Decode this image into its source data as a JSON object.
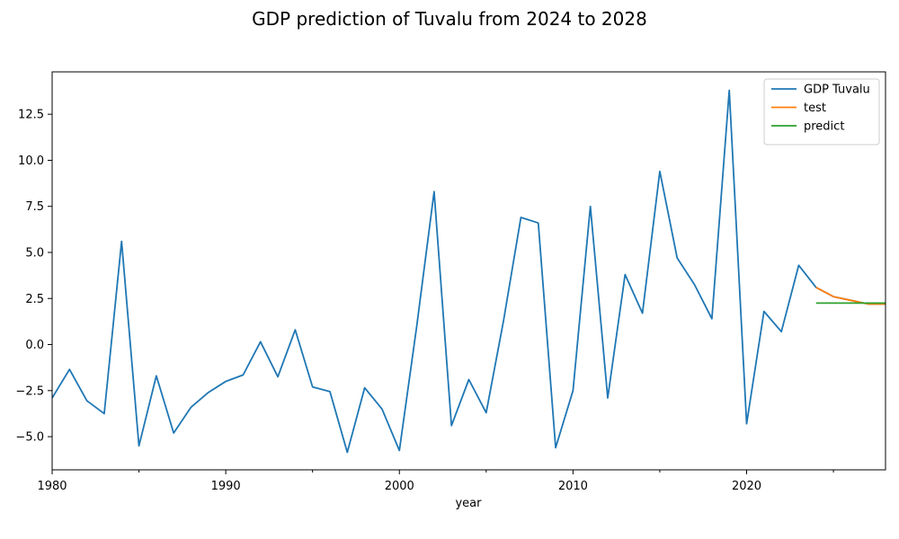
{
  "chart_data": {
    "type": "line",
    "title": "GDP prediction of Tuvalu from 2024 to 2028",
    "xlabel": "year",
    "ylabel": "",
    "xlim": [
      1980,
      2028
    ],
    "ylim": [
      -6.8,
      14.8
    ],
    "x_ticks": [
      1980,
      1990,
      2000,
      2010,
      2020
    ],
    "x_tick_labels": [
      "1980",
      "1990",
      "2000",
      "2010",
      "2020"
    ],
    "x_minor_ticks": [
      1985,
      1995,
      2005,
      2015,
      2025
    ],
    "y_ticks": [
      -5.0,
      -2.5,
      0.0,
      2.5,
      5.0,
      7.5,
      10.0,
      12.5
    ],
    "y_tick_labels": [
      "−5.0",
      "−2.5",
      "0.0",
      "2.5",
      "5.0",
      "7.5",
      "10.0",
      "12.5"
    ],
    "grid": false,
    "legend_position": "top-right",
    "series": [
      {
        "name": "GDP Tuvalu",
        "color": "#1f77b4",
        "x": [
          1980,
          1981,
          1982,
          1983,
          1984,
          1985,
          1986,
          1987,
          1988,
          1989,
          1990,
          1991,
          1992,
          1993,
          1994,
          1995,
          1996,
          1997,
          1998,
          1999,
          2000,
          2001,
          2002,
          2003,
          2004,
          2005,
          2006,
          2007,
          2008,
          2009,
          2010,
          2011,
          2012,
          2013,
          2014,
          2015,
          2016,
          2017,
          2018,
          2019,
          2020,
          2021,
          2022,
          2023,
          2024,
          2025,
          2026,
          2027,
          2028
        ],
        "y": [
          -2.9,
          -1.35,
          -3.05,
          -3.75,
          5.6,
          -5.5,
          -1.7,
          -4.8,
          -3.4,
          -2.6,
          -2.0,
          -1.65,
          0.15,
          -1.75,
          0.8,
          -2.3,
          -2.55,
          -5.85,
          -2.35,
          -3.5,
          -5.75,
          1.0,
          8.3,
          -4.4,
          -1.9,
          -3.7,
          1.3,
          6.9,
          6.6,
          -5.6,
          -2.5,
          7.5,
          -2.9,
          3.8,
          1.7,
          9.4,
          4.7,
          3.25,
          1.4,
          13.8,
          -4.3,
          1.8,
          0.7,
          4.3,
          3.1,
          2.6,
          2.4,
          2.2,
          2.2
        ]
      },
      {
        "name": "test",
        "color": "#ff7f0e",
        "x": [
          2024,
          2025,
          2026,
          2027,
          2028
        ],
        "y": [
          3.1,
          2.6,
          2.4,
          2.2,
          2.2
        ]
      },
      {
        "name": "predict",
        "color": "#2ca02c",
        "x": [
          2024,
          2025,
          2026,
          2027,
          2028
        ],
        "y": [
          2.25,
          2.25,
          2.25,
          2.25,
          2.25
        ]
      }
    ]
  }
}
